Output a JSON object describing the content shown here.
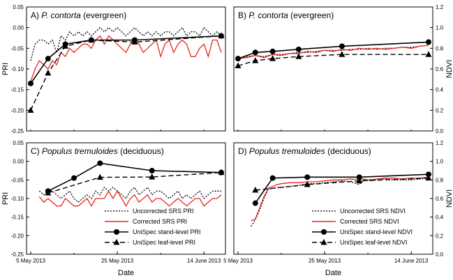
{
  "chart_data": [
    {
      "type": "line",
      "title_prefix": "A) ",
      "title_italic": "P. contorta",
      "title_suffix": " (evergreen)",
      "xlabel": "",
      "ylabel": "PRI",
      "ylim": [
        -0.25,
        0.05
      ],
      "yticks": [
        "0.05",
        "0.00",
        "-0.05",
        "-0.10",
        "-0.15",
        "-0.20",
        "-0.25"
      ],
      "xlim": [
        0,
        44
      ],
      "x_tick_labels": [],
      "series": [
        {
          "name": "Uncorrected SRS PRI",
          "style": "dotted",
          "x": [
            0,
            1,
            2,
            3,
            4,
            5,
            6,
            7,
            8,
            9,
            10,
            11,
            12,
            13,
            14,
            15,
            16,
            17,
            18,
            19,
            20,
            21,
            22,
            23,
            24,
            25,
            26,
            27,
            28,
            29,
            30,
            31,
            32,
            33,
            34,
            35,
            36,
            37,
            38,
            39,
            40,
            41,
            42,
            43,
            44
          ],
          "y": [
            -0.08,
            -0.04,
            -0.03,
            -0.03,
            -0.04,
            -0.03,
            -0.06,
            -0.02,
            -0.03,
            -0.01,
            -0.02,
            -0.01,
            -0.02,
            -0.01,
            -0.02,
            -0.01,
            0.0,
            -0.01,
            0.0,
            -0.01,
            0.0,
            -0.01,
            -0.02,
            -0.01,
            0.0,
            -0.01,
            -0.02,
            -0.01,
            -0.02,
            -0.01,
            -0.02,
            -0.01,
            -0.01,
            -0.02,
            -0.01,
            0.0,
            -0.02,
            -0.01,
            -0.01,
            -0.02,
            0.0,
            -0.01,
            -0.02,
            -0.01,
            -0.02
          ]
        },
        {
          "name": "Corrected SRS PRI",
          "style": "red",
          "x": [
            0,
            1,
            2,
            3,
            4,
            5,
            6,
            7,
            8,
            9,
            10,
            11,
            12,
            13,
            14,
            15,
            16,
            17,
            18,
            19,
            20,
            21,
            22,
            23,
            24,
            25,
            26,
            27,
            28,
            29,
            30,
            31,
            32,
            33,
            34,
            35,
            36,
            37,
            38,
            39,
            40,
            41,
            42,
            43,
            44
          ],
          "y": [
            -0.13,
            -0.1,
            -0.08,
            -0.09,
            -0.1,
            -0.08,
            -0.09,
            -0.06,
            -0.07,
            -0.05,
            -0.06,
            -0.05,
            -0.04,
            -0.04,
            -0.05,
            -0.03,
            -0.02,
            -0.04,
            -0.02,
            -0.03,
            -0.04,
            -0.05,
            -0.06,
            -0.04,
            -0.03,
            -0.04,
            -0.06,
            -0.05,
            -0.04,
            -0.03,
            -0.07,
            -0.04,
            -0.03,
            -0.06,
            -0.04,
            -0.03,
            -0.04,
            -0.07,
            -0.07,
            -0.05,
            -0.04,
            -0.07,
            -0.03,
            -0.03,
            -0.06
          ]
        },
        {
          "name": "UniSpec stand-level PRI",
          "style": "solid-circle",
          "x": [
            0,
            4,
            8,
            14,
            24,
            44
          ],
          "y": [
            -0.135,
            -0.075,
            -0.04,
            -0.03,
            -0.03,
            -0.02
          ]
        },
        {
          "name": "UniSpec leaf-level PRI",
          "style": "dashed-triangle",
          "x": [
            0,
            4,
            8,
            14,
            24,
            44
          ],
          "y": [
            -0.2,
            -0.11,
            -0.045,
            -0.03,
            -0.035,
            -0.02
          ]
        }
      ]
    },
    {
      "type": "line",
      "title_prefix": "B) ",
      "title_italic": "P. contorta",
      "title_suffix": " (evergreen)",
      "xlabel": "",
      "ylabel": "NDVI",
      "ylim": [
        0.0,
        1.2
      ],
      "yticks": [
        "1.2",
        "1.0",
        "0.8",
        "0.6",
        "0.4",
        "0.2",
        "0.0"
      ],
      "xlim": [
        0,
        44
      ],
      "x_tick_labels": [],
      "series": [
        {
          "name": "Uncorrected SRS NDVI",
          "style": "dotted",
          "x": [
            0,
            2,
            4,
            6,
            8,
            10,
            12,
            14,
            16,
            18,
            20,
            22,
            24,
            26,
            28,
            30,
            32,
            34,
            36,
            38,
            40,
            42,
            44
          ],
          "y": [
            0.7,
            0.72,
            0.73,
            0.72,
            0.74,
            0.74,
            0.75,
            0.76,
            0.76,
            0.77,
            0.78,
            0.78,
            0.78,
            0.79,
            0.79,
            0.8,
            0.79,
            0.8,
            0.8,
            0.81,
            0.81,
            0.82,
            0.83
          ]
        },
        {
          "name": "Corrected SRS NDVI",
          "style": "red",
          "x": [
            0,
            2,
            4,
            6,
            8,
            10,
            12,
            14,
            16,
            18,
            20,
            22,
            24,
            26,
            28,
            30,
            32,
            34,
            36,
            38,
            40,
            42,
            44
          ],
          "y": [
            0.7,
            0.71,
            0.73,
            0.71,
            0.74,
            0.73,
            0.75,
            0.75,
            0.77,
            0.76,
            0.78,
            0.77,
            0.79,
            0.78,
            0.8,
            0.79,
            0.8,
            0.79,
            0.8,
            0.81,
            0.8,
            0.82,
            0.83
          ]
        },
        {
          "name": "UniSpec stand-level NDVI",
          "style": "solid-circle",
          "x": [
            0,
            4,
            8,
            14,
            24,
            44
          ],
          "y": [
            0.7,
            0.76,
            0.77,
            0.79,
            0.82,
            0.86
          ]
        },
        {
          "name": "UniSpec leaf-level NDVI",
          "style": "dashed-triangle",
          "x": [
            0,
            4,
            8,
            14,
            24,
            44
          ],
          "y": [
            0.63,
            0.68,
            0.7,
            0.72,
            0.74,
            0.74
          ]
        }
      ]
    },
    {
      "type": "line",
      "title_prefix": "C) ",
      "title_italic": "Populus tremuloides",
      "title_suffix": " (deciduous)",
      "xlabel": "Date",
      "ylabel": "PRI",
      "ylim": [
        -0.25,
        0.05
      ],
      "yticks": [
        "0.05",
        "0.00",
        "-0.05",
        "-0.10",
        "-0.15",
        "-0.20",
        "-0.25"
      ],
      "xlim": [
        0,
        44
      ],
      "x_tick_labels": [
        "5 May 2013",
        "25 May 2013",
        "14 June 2013"
      ],
      "x_tick_positions": [
        0,
        20,
        40
      ],
      "series": [
        {
          "name": "Uncorrected SRS PRI",
          "style": "dotted",
          "x": [
            2,
            3,
            4,
            5,
            6,
            7,
            8,
            9,
            10,
            11,
            12,
            13,
            14,
            15,
            16,
            17,
            18,
            19,
            20,
            21,
            22,
            23,
            24,
            25,
            26,
            27,
            28,
            29,
            30,
            31,
            32,
            33,
            34,
            35,
            36,
            37,
            38,
            39,
            40,
            41,
            42,
            43,
            44
          ],
          "y": [
            -0.08,
            -0.09,
            -0.08,
            -0.08,
            -0.09,
            -0.1,
            -0.09,
            -0.08,
            -0.1,
            -0.11,
            -0.1,
            -0.09,
            -0.1,
            -0.08,
            -0.09,
            -0.07,
            -0.08,
            -0.07,
            -0.08,
            -0.09,
            -0.1,
            -0.08,
            -0.07,
            -0.09,
            -0.08,
            -0.07,
            -0.09,
            -0.08,
            -0.08,
            -0.09,
            -0.1,
            -0.09,
            -0.08,
            -0.1,
            -0.09,
            -0.1,
            -0.09,
            -0.08,
            -0.1,
            -0.09,
            -0.08,
            -0.08,
            -0.08
          ]
        },
        {
          "name": "Corrected SRS PRI",
          "style": "red",
          "x": [
            2,
            3,
            4,
            5,
            6,
            7,
            8,
            9,
            10,
            11,
            12,
            13,
            14,
            15,
            16,
            17,
            18,
            19,
            20,
            21,
            22,
            23,
            24,
            25,
            26,
            27,
            28,
            29,
            30,
            31,
            32,
            33,
            34,
            35,
            36,
            37,
            38,
            39,
            40,
            41,
            42,
            43,
            44
          ],
          "y": [
            -0.095,
            -0.11,
            -0.1,
            -0.11,
            -0.12,
            -0.12,
            -0.1,
            -0.11,
            -0.12,
            -0.12,
            -0.11,
            -0.1,
            -0.12,
            -0.1,
            -0.1,
            -0.1,
            -0.08,
            -0.1,
            -0.08,
            -0.1,
            -0.12,
            -0.1,
            -0.09,
            -0.11,
            -0.1,
            -0.09,
            -0.11,
            -0.1,
            -0.1,
            -0.11,
            -0.12,
            -0.11,
            -0.1,
            -0.11,
            -0.12,
            -0.11,
            -0.1,
            -0.1,
            -0.12,
            -0.11,
            -0.1,
            -0.1,
            -0.09
          ]
        },
        {
          "name": "UniSpec stand-level PRI",
          "style": "solid-circle",
          "x": [
            4,
            10,
            16,
            28,
            44
          ],
          "y": [
            -0.08,
            -0.045,
            -0.005,
            -0.025,
            -0.03
          ]
        },
        {
          "name": "UniSpec leaf-level PRI",
          "style": "dashed-triangle",
          "x": [
            4,
            16,
            28,
            44
          ],
          "y": [
            -0.085,
            -0.043,
            -0.042,
            -0.03
          ]
        }
      ]
    },
    {
      "type": "line",
      "title_prefix": "D) ",
      "title_italic": "Populus tremuloides",
      "title_suffix": " (deciduous)",
      "xlabel": "Date",
      "ylabel": "NDVI",
      "ylim": [
        0.0,
        1.2
      ],
      "yticks": [
        "1.2",
        "1.0",
        "0.8",
        "0.6",
        "0.4",
        "0.2",
        "0.0"
      ],
      "xlim": [
        0,
        44
      ],
      "x_tick_labels": [
        "5 May 2013",
        "25 May 2013",
        "14 June 2013"
      ],
      "x_tick_positions": [
        0,
        20,
        40
      ],
      "series": [
        {
          "name": "Uncorrected SRS NDVI",
          "style": "dotted",
          "x": [
            3,
            4,
            5,
            6,
            7,
            8,
            9,
            10,
            12,
            14,
            16,
            18,
            20,
            22,
            24,
            26,
            28,
            29,
            30,
            32,
            34,
            36,
            38,
            40,
            42,
            44
          ],
          "y": [
            0.3,
            0.37,
            0.48,
            0.6,
            0.7,
            0.71,
            0.72,
            0.72,
            0.73,
            0.74,
            0.76,
            0.76,
            0.77,
            0.78,
            0.79,
            0.78,
            0.75,
            0.8,
            0.79,
            0.8,
            0.81,
            0.8,
            0.8,
            0.8,
            0.81,
            0.82
          ]
        },
        {
          "name": "Corrected SRS NDVI",
          "style": "red",
          "x": [
            3,
            4,
            5,
            6,
            7,
            8,
            9,
            10,
            12,
            14,
            16,
            18,
            20,
            22,
            24,
            26,
            28,
            29,
            30,
            32,
            34,
            36,
            38,
            40,
            42,
            44
          ],
          "y": [
            0.36,
            0.38,
            0.5,
            0.62,
            0.71,
            0.73,
            0.75,
            0.76,
            0.77,
            0.77,
            0.78,
            0.78,
            0.79,
            0.8,
            0.8,
            0.81,
            0.8,
            0.81,
            0.8,
            0.81,
            0.82,
            0.82,
            0.81,
            0.82,
            0.82,
            0.83
          ]
        },
        {
          "name": "UniSpec stand-level NDVI",
          "style": "solid-circle",
          "x": [
            4,
            8,
            16,
            28,
            44
          ],
          "y": [
            0.55,
            0.82,
            0.83,
            0.83,
            0.86
          ]
        },
        {
          "name": "UniSpec leaf-level NDVI",
          "style": "dashed-triangle",
          "x": [
            4,
            16,
            28,
            44
          ],
          "y": [
            0.69,
            0.75,
            0.79,
            0.82
          ]
        }
      ]
    }
  ]
}
